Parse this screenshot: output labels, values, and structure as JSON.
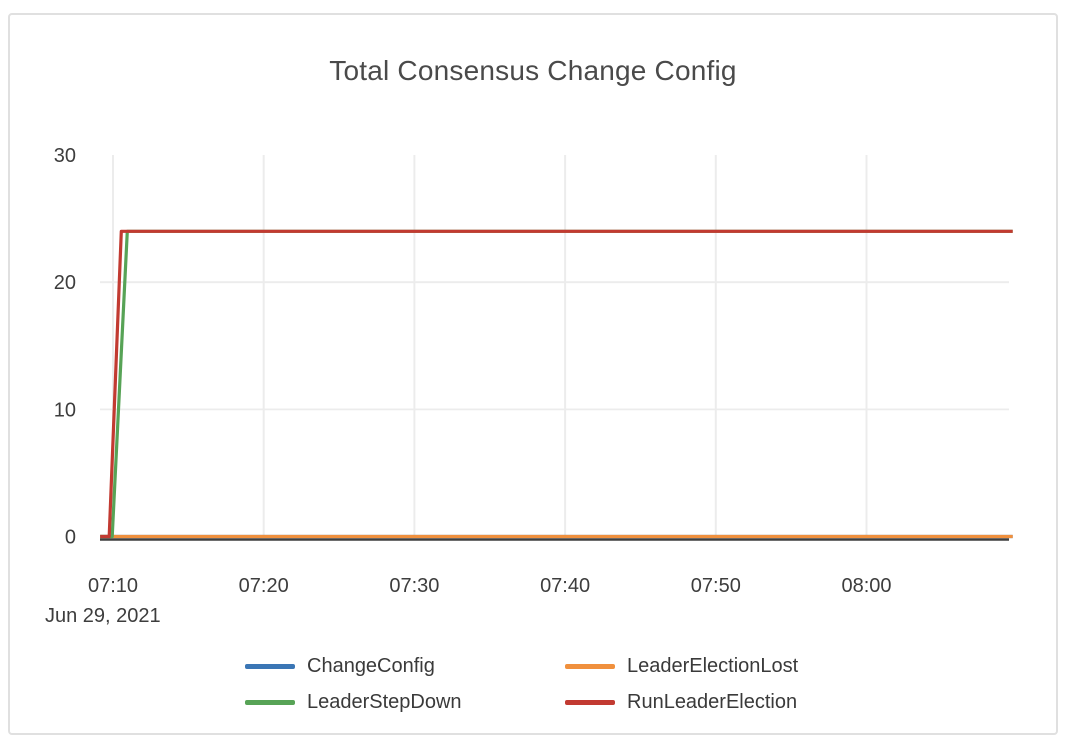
{
  "card": {
    "title": "Total Consensus Change Config"
  },
  "legend": {
    "items": [
      {
        "label": "ChangeConfig",
        "color": "#3b76b5"
      },
      {
        "label": "LeaderElectionLost",
        "color": "#f0903d"
      },
      {
        "label": "LeaderStepDown",
        "color": "#57a356"
      },
      {
        "label": "RunLeaderElection",
        "color": "#c23a31"
      }
    ]
  },
  "chart_data": {
    "type": "line",
    "title": "Total Consensus Change Config",
    "x_unit": "minutes_since_midnight",
    "x_axis": {
      "tick_labels": [
        "07:10",
        "07:20",
        "07:30",
        "07:40",
        "07:50",
        "08:00"
      ],
      "tick_minutes": [
        430,
        440,
        450,
        460,
        470,
        480
      ],
      "date_label": "Jun 29, 2021",
      "range_minutes": [
        429.15,
        489.7
      ]
    },
    "y_axis": {
      "tick_labels": [
        "0",
        "10",
        "20",
        "30"
      ],
      "tick_values": [
        0,
        10,
        20,
        30
      ],
      "gridlines_at": [
        10,
        20
      ],
      "range": [
        0,
        30
      ]
    },
    "grid": true,
    "legend_position": "bottom",
    "axis_zero_line_color": "#3f3f3f",
    "gridline_color": "#ececec",
    "series": [
      {
        "name": "ChangeConfig",
        "color": "#3b76b5",
        "points": [
          [
            429.15,
            0
          ],
          [
            489.7,
            0
          ]
        ]
      },
      {
        "name": "LeaderElectionLost",
        "color": "#f0903d",
        "points": [
          [
            429.15,
            0
          ],
          [
            489.7,
            0
          ]
        ]
      },
      {
        "name": "LeaderStepDown",
        "color": "#57a356",
        "points": [
          [
            429.15,
            0
          ],
          [
            429.95,
            0
          ],
          [
            430.95,
            24
          ],
          [
            489.7,
            24
          ]
        ]
      },
      {
        "name": "RunLeaderElection",
        "color": "#c23a31",
        "points": [
          [
            429.15,
            0
          ],
          [
            429.75,
            0
          ],
          [
            430.55,
            24
          ],
          [
            489.7,
            24
          ]
        ]
      }
    ]
  }
}
